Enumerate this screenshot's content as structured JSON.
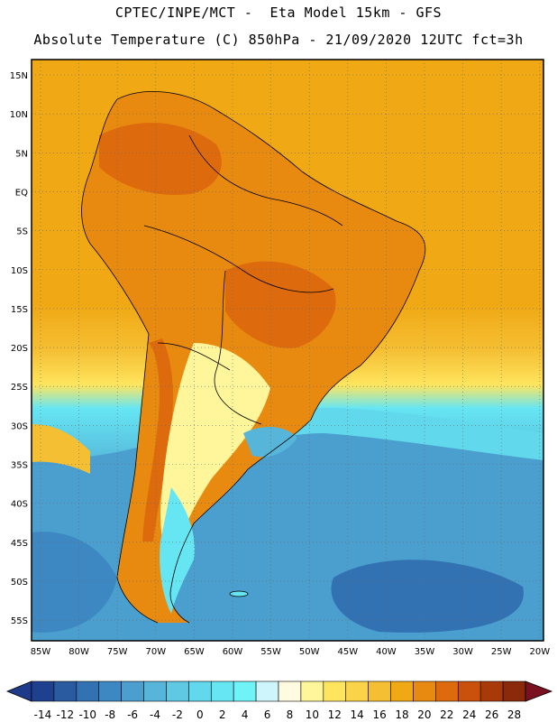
{
  "header": {
    "line1": "CPTEC/INPE/MCT -  Eta Model 15km - GFS",
    "line2": "Absolute Temperature (C) 850hPa - 21/09/2020 12UTC fct=3h"
  },
  "map": {
    "lat_labels": [
      "15N",
      "10N",
      "5N",
      "EQ",
      "5S",
      "10S",
      "15S",
      "20S",
      "25S",
      "30S",
      "35S",
      "40S",
      "45S",
      "50S",
      "55S"
    ],
    "lon_labels": [
      "85W",
      "80W",
      "75W",
      "70W",
      "65W",
      "60W",
      "55W",
      "50W",
      "45W",
      "40W",
      "35W",
      "30W",
      "25W",
      "20W"
    ],
    "grid": "dotted"
  },
  "colorbar": {
    "labels": [
      "-14",
      "-12",
      "-10",
      "-8",
      "-6",
      "-4",
      "-2",
      "0",
      "2",
      "4",
      "6",
      "8",
      "10",
      "12",
      "14",
      "16",
      "18",
      "20",
      "22",
      "24",
      "26",
      "28"
    ],
    "colors": [
      "#1f3f8f",
      "#2a5aa0",
      "#3372b2",
      "#3d88c2",
      "#4a9fcf",
      "#56b5d9",
      "#5fc9e3",
      "#62d8ec",
      "#66e6f3",
      "#6ff3f7",
      "#cdf5fb",
      "#fffbe0",
      "#fff59a",
      "#ffe55e",
      "#fbd348",
      "#f5bf33",
      "#f0a814",
      "#e98a10",
      "#dd6a0c",
      "#c9510b",
      "#a83a0a",
      "#8a2a0a"
    ],
    "left_arrow_color": "#1e3a8a",
    "right_arrow_color": "#7a1020"
  }
}
